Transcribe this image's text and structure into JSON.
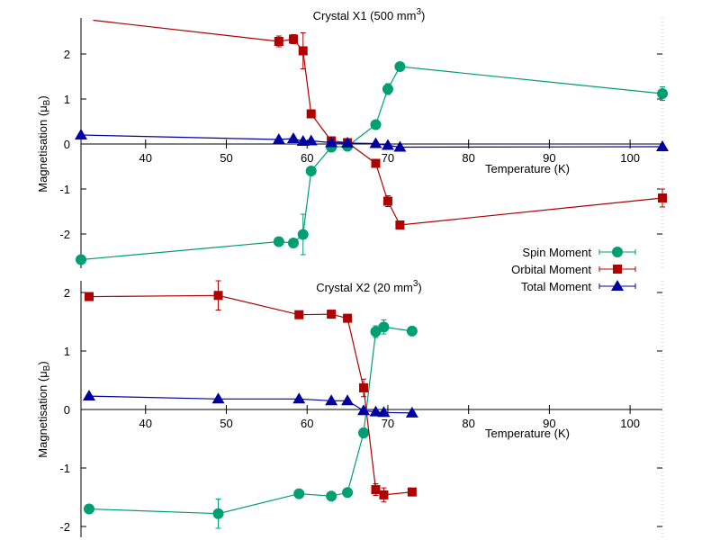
{
  "chart_data": [
    {
      "type": "line",
      "title_main": "Crystal X1 (500 mm",
      "title_sup": "3",
      "title_end": ")",
      "xlabel": "Temperature (K)",
      "ylabel_main": "Magnetisation (μ",
      "ylabel_sub": "B",
      "ylabel_end": ")",
      "xlim": [
        32,
        105
      ],
      "ylim": [
        -2.6,
        2.75
      ],
      "xticks": [
        "40",
        "50",
        "60",
        "70",
        "80",
        "90",
        "100"
      ],
      "yticks": [
        "-2",
        "-1",
        "0",
        "1",
        "2"
      ],
      "series": [
        {
          "name": "Spin Moment",
          "color": "#009e73",
          "marker": "circle",
          "points": [
            {
              "x": 32,
              "y": -2.57,
              "err": 0
            },
            {
              "x": 56.5,
              "y": -2.17,
              "err": 0.07
            },
            {
              "x": 58.3,
              "y": -2.2,
              "err": 0.07
            },
            {
              "x": 59.5,
              "y": -2.01,
              "err": 0.45
            },
            {
              "x": 60.5,
              "y": -0.6,
              "err": 0.07
            },
            {
              "x": 63,
              "y": -0.07,
              "err": 0
            },
            {
              "x": 65,
              "y": -0.05,
              "err": 0
            },
            {
              "x": 68.5,
              "y": 0.43,
              "err": 0
            },
            {
              "x": 70,
              "y": 1.22,
              "err": 0.12
            },
            {
              "x": 71.5,
              "y": 1.72,
              "err": 0
            },
            {
              "x": 104,
              "y": 1.12,
              "err": 0.15
            }
          ]
        },
        {
          "name": "Orbital Moment",
          "color": "#b00000",
          "marker": "square",
          "points": [
            {
              "x": 33.5,
              "y": 2.75,
              "err": 0
            },
            {
              "x": 56.5,
              "y": 2.28,
              "err": 0.12
            },
            {
              "x": 58.3,
              "y": 2.33,
              "err": 0.1
            },
            {
              "x": 59.5,
              "y": 2.07,
              "err": 0.4
            },
            {
              "x": 60.5,
              "y": 0.67,
              "err": 0
            },
            {
              "x": 63,
              "y": 0.07,
              "err": 0
            },
            {
              "x": 65,
              "y": 0.03,
              "err": 0
            },
            {
              "x": 68.5,
              "y": -0.43,
              "err": 0
            },
            {
              "x": 70,
              "y": -1.27,
              "err": 0.12
            },
            {
              "x": 71.5,
              "y": -1.8,
              "err": 0
            },
            {
              "x": 104,
              "y": -1.2,
              "err": 0.2
            }
          ]
        },
        {
          "name": "Total Moment",
          "color": "#0000a0",
          "marker": "triangle",
          "points": [
            {
              "x": 32,
              "y": 0.2,
              "err": 0
            },
            {
              "x": 56.5,
              "y": 0.1,
              "err": 0
            },
            {
              "x": 58.3,
              "y": 0.12,
              "err": 0
            },
            {
              "x": 59.5,
              "y": 0.06,
              "err": 0
            },
            {
              "x": 60.5,
              "y": 0.07,
              "err": 0
            },
            {
              "x": 63,
              "y": 0.03,
              "err": 0
            },
            {
              "x": 65,
              "y": 0.02,
              "err": 0
            },
            {
              "x": 68.5,
              "y": 0.01,
              "err": 0
            },
            {
              "x": 70,
              "y": -0.03,
              "err": 0
            },
            {
              "x": 71.5,
              "y": -0.07,
              "err": 0
            },
            {
              "x": 104,
              "y": -0.06,
              "err": 0
            }
          ]
        }
      ]
    },
    {
      "type": "line",
      "title_main": "Crystal X2 (20 mm",
      "title_sup": "3",
      "title_end": ")",
      "xlabel": "Temperature (K)",
      "ylabel_main": "Magnetisation (μ",
      "ylabel_sub": "B",
      "ylabel_end": ")",
      "xlim": [
        32,
        105
      ],
      "ylim": [
        -2.2,
        2.15
      ],
      "xticks": [
        "40",
        "50",
        "60",
        "70",
        "80",
        "90",
        "100"
      ],
      "yticks": [
        "-2",
        "-1",
        "0",
        "1",
        "2"
      ],
      "series": [
        {
          "name": "Spin Moment",
          "color": "#009e73",
          "marker": "circle",
          "points": [
            {
              "x": 33,
              "y": -1.7,
              "err": 0
            },
            {
              "x": 49,
              "y": -1.78,
              "err": 0.25
            },
            {
              "x": 59,
              "y": -1.44,
              "err": 0
            },
            {
              "x": 63,
              "y": -1.48,
              "err": 0
            },
            {
              "x": 65,
              "y": -1.42,
              "err": 0
            },
            {
              "x": 67,
              "y": -0.4,
              "err": 0.08
            },
            {
              "x": 68.5,
              "y": 1.33,
              "err": 0.1
            },
            {
              "x": 69.5,
              "y": 1.41,
              "err": 0.12
            },
            {
              "x": 73,
              "y": 1.34,
              "err": 0
            }
          ]
        },
        {
          "name": "Orbital Moment",
          "color": "#b00000",
          "marker": "square",
          "points": [
            {
              "x": 33,
              "y": 1.93,
              "err": 0
            },
            {
              "x": 49,
              "y": 1.95,
              "err": 0.25
            },
            {
              "x": 59,
              "y": 1.62,
              "err": 0
            },
            {
              "x": 63,
              "y": 1.63,
              "err": 0
            },
            {
              "x": 65,
              "y": 1.56,
              "err": 0
            },
            {
              "x": 67,
              "y": 0.37,
              "err": 0.15
            },
            {
              "x": 68.5,
              "y": -1.37,
              "err": 0.1
            },
            {
              "x": 69.5,
              "y": -1.46,
              "err": 0.12
            },
            {
              "x": 73,
              "y": -1.41,
              "err": 0
            }
          ]
        },
        {
          "name": "Total Moment",
          "color": "#0000a0",
          "marker": "triangle",
          "points": [
            {
              "x": 33,
              "y": 0.23,
              "err": 0
            },
            {
              "x": 49,
              "y": 0.18,
              "err": 0
            },
            {
              "x": 59,
              "y": 0.18,
              "err": 0
            },
            {
              "x": 63,
              "y": 0.15,
              "err": 0
            },
            {
              "x": 65,
              "y": 0.15,
              "err": 0
            },
            {
              "x": 67,
              "y": -0.02,
              "err": 0
            },
            {
              "x": 68.5,
              "y": -0.04,
              "err": 0
            },
            {
              "x": 69.5,
              "y": -0.05,
              "err": 0
            },
            {
              "x": 73,
              "y": -0.06,
              "err": 0
            }
          ]
        }
      ]
    }
  ],
  "legend": [
    {
      "name": "Spin Moment",
      "color": "#009e73",
      "marker": "circle"
    },
    {
      "name": "Orbital Moment",
      "color": "#b00000",
      "marker": "square"
    },
    {
      "name": "Total Moment",
      "color": "#0000a0",
      "marker": "triangle"
    }
  ]
}
